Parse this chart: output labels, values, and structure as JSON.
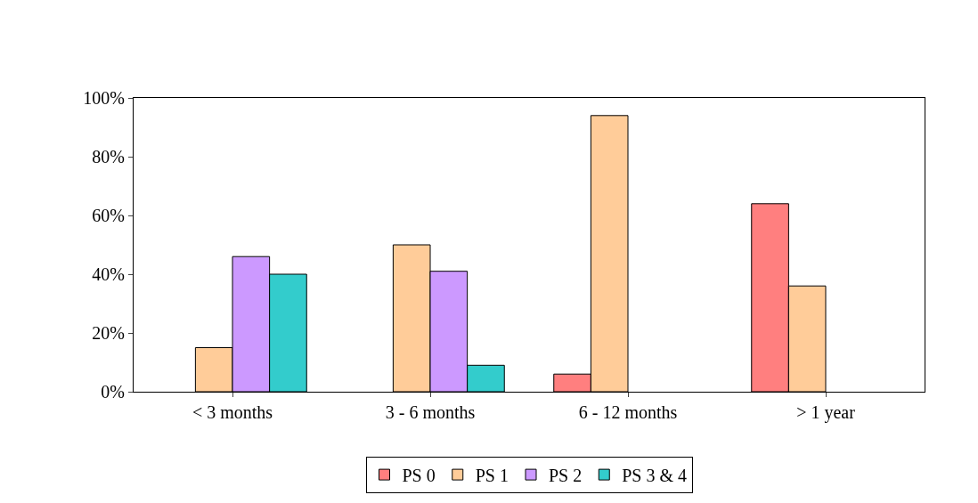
{
  "chart_data": {
    "type": "bar",
    "categories": [
      "< 3 months",
      "3 - 6 months",
      "6 - 12 months",
      "> 1 year"
    ],
    "series": [
      {
        "name": "PS 0",
        "color": "#ff7f7f",
        "values": [
          null,
          null,
          6,
          64
        ]
      },
      {
        "name": "PS 1",
        "color": "#ffcc99",
        "values": [
          15,
          50,
          94,
          36
        ]
      },
      {
        "name": "PS 2",
        "color": "#cc99ff",
        "values": [
          46,
          41,
          null,
          null
        ]
      },
      {
        "name": "PS 3 & 4",
        "color": "#33cccc",
        "values": [
          40,
          9,
          null,
          null
        ]
      }
    ],
    "ylim": [
      0,
      100
    ],
    "yticks": [
      {
        "value": 0,
        "label": "0%"
      },
      {
        "value": 20,
        "label": "20%"
      },
      {
        "value": 40,
        "label": "40%"
      },
      {
        "value": 60,
        "label": "60%"
      },
      {
        "value": 80,
        "label": "80%"
      },
      {
        "value": 100,
        "label": "100%"
      }
    ],
    "grid": false,
    "legend": "bottom"
  }
}
